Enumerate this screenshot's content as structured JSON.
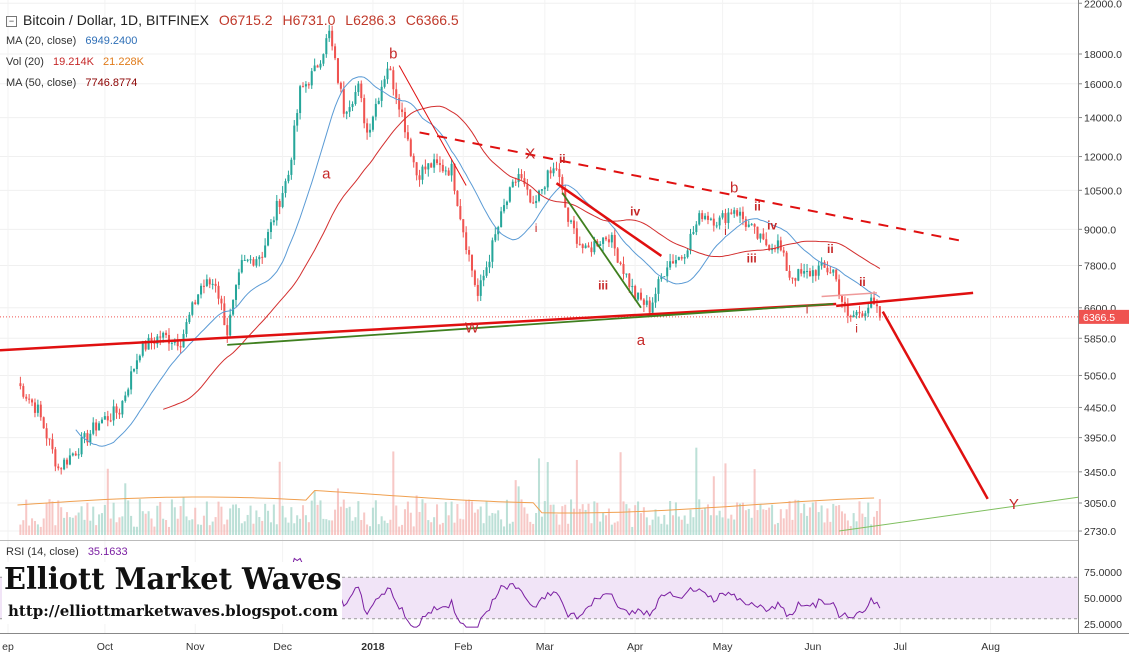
{
  "header": {
    "title": "Bitcoin / Dollar, 1D, BITFINEX",
    "open": "O6715.2",
    "high": "H6731.0",
    "low": "L6286.3",
    "close": "C6366.5",
    "ma20_label": "MA (20, close)",
    "ma20_value": "6949.2400",
    "vol_label": "Vol (20)",
    "vol_value1": "19.214K",
    "vol_value2": "21.228K",
    "ma50_label": "MA (50, close)",
    "ma50_value": "7746.8774",
    "rsi_label": "RSI (14, close)",
    "rsi_value": "35.1633"
  },
  "logo": {
    "brand": "Elliott Market Waves",
    "url": "http://elliottmarketwaves.blogspot.com"
  },
  "colors": {
    "bull": "#26a69a",
    "bear": "#ef5350",
    "ma20": "#5b9bd5",
    "ma50": "#d32f2f",
    "trend_red": "#e01010",
    "trend_green": "#3f7f1f",
    "rsi": "#7b1fa2",
    "rsi_band": "#f1e4f7",
    "price_tag": "#ef5350"
  },
  "chart_data": {
    "type": "candlestick",
    "price_axis": {
      "ticks": [
        "22000.0",
        "18000.0",
        "16000.0",
        "14000.0",
        "12000.0",
        "10500.0",
        "9000.0",
        "7800.0",
        "6600.0",
        "5850.0",
        "5050.0",
        "4450.0",
        "3950.0",
        "3450.0",
        "3050.0",
        "2730.0"
      ],
      "scale": "log",
      "current_price": "6366.5"
    },
    "rsi_axis": {
      "ticks": [
        "75.0000",
        "50.0000",
        "25.0000"
      ],
      "upper": 70,
      "lower": 30
    },
    "x_labels": [
      "ep",
      "Oct",
      "Nov",
      "Dec",
      "2018",
      "Feb",
      "Mar",
      "Apr",
      "May",
      "Jun",
      "Jul",
      "Aug"
    ],
    "price_path": [
      [
        "2017-09-01",
        4900
      ],
      [
        "2017-09-08",
        4400
      ],
      [
        "2017-09-15",
        3500
      ],
      [
        "2017-09-22",
        3800
      ],
      [
        "2017-09-29",
        4200
      ],
      [
        "2017-10-06",
        4400
      ],
      [
        "2017-10-13",
        5600
      ],
      [
        "2017-10-20",
        5900
      ],
      [
        "2017-10-27",
        5800
      ],
      [
        "2017-11-03",
        7200
      ],
      [
        "2017-11-08",
        7300
      ],
      [
        "2017-11-12",
        6000
      ],
      [
        "2017-11-17",
        7800
      ],
      [
        "2017-11-24",
        8200
      ],
      [
        "2017-11-29",
        9800
      ],
      [
        "2017-12-03",
        11200
      ],
      [
        "2017-12-07",
        15500
      ],
      [
        "2017-12-12",
        16800
      ],
      [
        "2017-12-17",
        19500
      ],
      [
        "2017-12-22",
        14500
      ],
      [
        "2017-12-27",
        15700
      ],
      [
        "2017-12-30",
        13200
      ],
      [
        "2018-01-06",
        17200
      ],
      [
        "2018-01-10",
        14900
      ],
      [
        "2018-01-16",
        11200
      ],
      [
        "2018-01-21",
        11600
      ],
      [
        "2018-01-28",
        11400
      ],
      [
        "2018-02-01",
        9000
      ],
      [
        "2018-02-06",
        6900
      ],
      [
        "2018-02-10",
        8100
      ],
      [
        "2018-02-15",
        9800
      ],
      [
        "2018-02-20",
        11200
      ],
      [
        "2018-02-25",
        9700
      ],
      [
        "2018-03-01",
        10900
      ],
      [
        "2018-03-05",
        11500
      ],
      [
        "2018-03-09",
        9300
      ],
      [
        "2018-03-15",
        8200
      ],
      [
        "2018-03-19",
        8600
      ],
      [
        "2018-03-23",
        8800
      ],
      [
        "2018-03-27",
        7900
      ],
      [
        "2018-04-01",
        6900
      ],
      [
        "2018-04-06",
        6600
      ],
      [
        "2018-04-12",
        7900
      ],
      [
        "2018-04-17",
        8100
      ],
      [
        "2018-04-24",
        9600
      ],
      [
        "2018-04-30",
        9300
      ],
      [
        "2018-05-05",
        9800
      ],
      [
        "2018-05-10",
        9100
      ],
      [
        "2018-05-15",
        8500
      ],
      [
        "2018-05-20",
        8500
      ],
      [
        "2018-05-24",
        7500
      ],
      [
        "2018-05-29",
        7500
      ],
      [
        "2018-06-03",
        7700
      ],
      [
        "2018-06-08",
        7650
      ],
      [
        "2018-06-11",
        6800
      ],
      [
        "2018-06-13",
        6300
      ],
      [
        "2018-06-17",
        6500
      ],
      [
        "2018-06-21",
        6700
      ],
      [
        "2018-06-24",
        6366.5
      ]
    ],
    "annotations": [
      "a",
      "b",
      "W",
      "X",
      "ii",
      "i",
      "iii",
      "iv",
      "a",
      "b",
      "i",
      "ii",
      "iii",
      "iv",
      "i",
      "ii",
      "i",
      "ii",
      "Y"
    ],
    "projection": [
      [
        "2018-06-25",
        6500
      ],
      [
        "2018-07-31",
        3100
      ]
    ]
  }
}
